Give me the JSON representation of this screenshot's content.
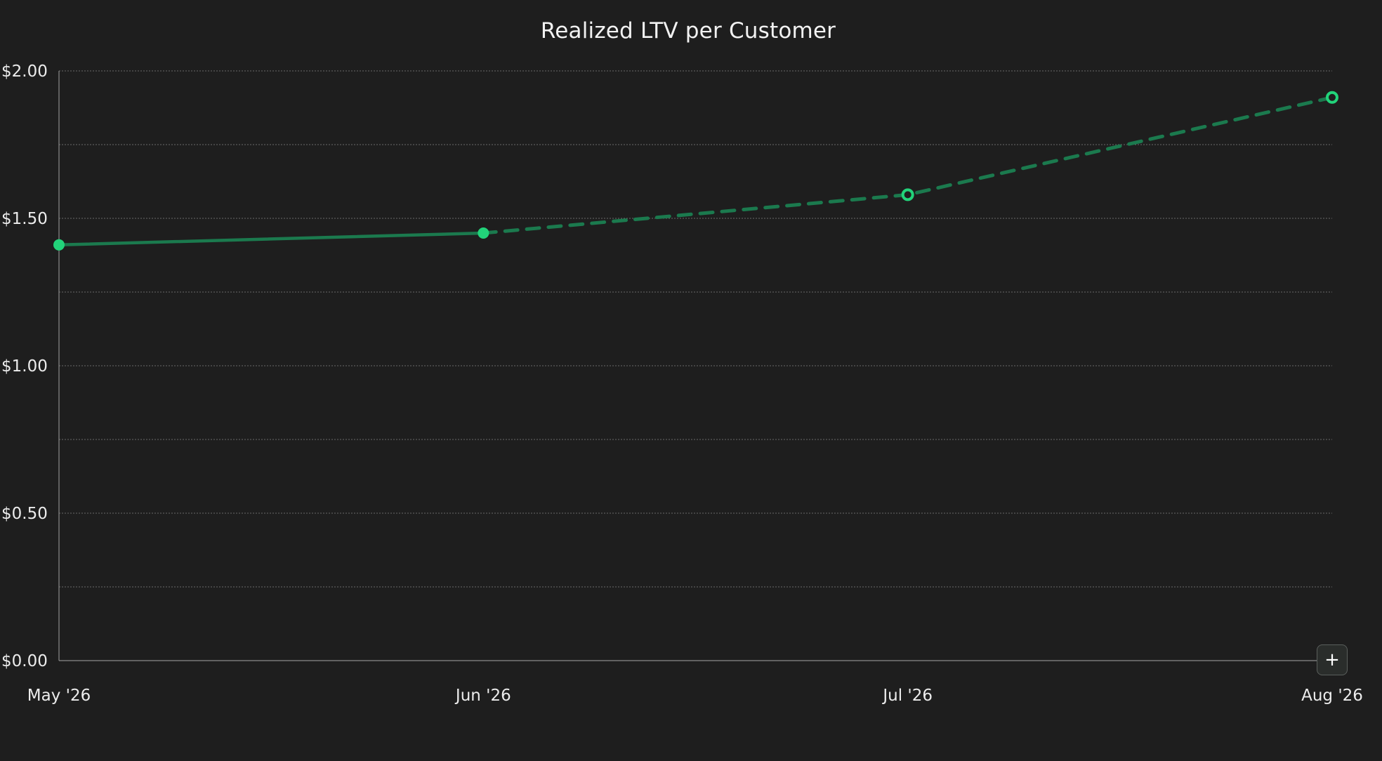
{
  "chart_data": {
    "type": "line",
    "title": "Realized LTV per Customer",
    "xlabel": "",
    "ylabel": "",
    "categories": [
      "May '26",
      "Jun '26",
      "Jul '26",
      "Aug '26"
    ],
    "y_ticks": [
      "$0.00",
      "$0.50",
      "$1.00",
      "$1.50",
      "$2.00"
    ],
    "ylim": [
      0,
      2
    ],
    "grid": true,
    "series": [
      {
        "kind": "actual",
        "style": "solid",
        "x": [
          "May '26",
          "Jun '26"
        ],
        "values": [
          1.41,
          1.45
        ],
        "color": "#1b7a4e",
        "marker_color": "#22d37a"
      },
      {
        "kind": "projected",
        "style": "dashed",
        "x": [
          "Jun '26",
          "Jul '26",
          "Aug '26"
        ],
        "values": [
          1.45,
          1.58,
          1.91
        ],
        "color": "#1b7a4e",
        "marker_color": "#22d37a"
      }
    ],
    "colors": {
      "background": "#1e1e1e",
      "grid": "#6b6b6b",
      "axis": "#8a8a8a",
      "text": "#ececec"
    }
  },
  "controls": {
    "add_button_label": "+"
  }
}
